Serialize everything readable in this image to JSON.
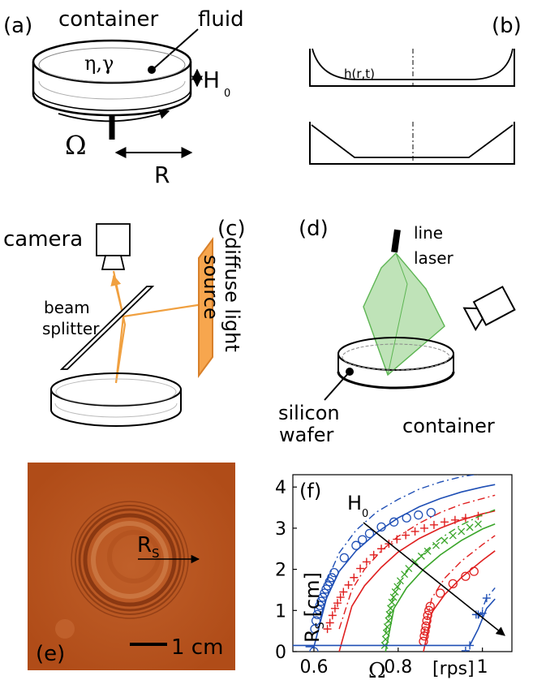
{
  "panel_a": {
    "tag": "(a)",
    "container": "container",
    "fluid": "fluid",
    "props": "η,γ",
    "depth": "H",
    "depth_sub": "0",
    "omega": "Ω",
    "radius": "R"
  },
  "panel_b": {
    "tag": "(b)",
    "profile": "h(r,t)"
  },
  "panel_c": {
    "tag": "(c)",
    "camera": "camera",
    "beam1": "beam",
    "beam2": "splitter",
    "diffuse": "diffuse light",
    "source": "source"
  },
  "panel_d": {
    "tag": "(d)",
    "line1": "line",
    "line2": "laser",
    "silicon": "silicon",
    "wafer": "wafer",
    "container": "container"
  },
  "panel_e": {
    "tag": "(e)",
    "rs": "R",
    "rs_sub": "S",
    "scale": "1 cm",
    "colors": {
      "bg": "#b5531f",
      "ring": "#7a2e0c"
    }
  },
  "panel_f": {
    "tag": "(f)",
    "h0": "H",
    "h0_sub": "0",
    "ylabel_main": "R",
    "ylabel_sub": "S",
    "ylabel_unit": "[cm]",
    "xlabel_omega": "Ω",
    "xlabel_unit": "[rps]"
  },
  "chart_data": {
    "type": "scatter",
    "xlim": [
      0.55,
      1.07
    ],
    "ylim": [
      0,
      4.3
    ],
    "xticks": [
      "0.6",
      "0.8",
      "1"
    ],
    "xtick_values": [
      0.6,
      0.8,
      1.0
    ],
    "yticks": [
      "0",
      "1",
      "2",
      "3",
      "4"
    ],
    "ytick_values": [
      0,
      1,
      2,
      3,
      4
    ],
    "grid": false,
    "series": [
      {
        "color": "#1f4fb5",
        "marker": "circle",
        "points": [
          [
            0.6,
            0.0
          ],
          [
            0.602,
            0.55
          ],
          [
            0.605,
            0.75
          ],
          [
            0.608,
            0.9
          ],
          [
            0.611,
            1.02
          ],
          [
            0.614,
            1.12
          ],
          [
            0.617,
            1.22
          ],
          [
            0.621,
            1.32
          ],
          [
            0.625,
            1.42
          ],
          [
            0.629,
            1.52
          ],
          [
            0.633,
            1.6
          ],
          [
            0.637,
            1.7
          ],
          [
            0.642,
            1.8
          ],
          [
            0.648,
            1.92
          ],
          [
            0.672,
            2.28
          ],
          [
            0.7,
            2.58
          ],
          [
            0.715,
            2.72
          ],
          [
            0.732,
            2.87
          ],
          [
            0.76,
            3.03
          ],
          [
            0.79,
            3.15
          ],
          [
            0.82,
            3.25
          ],
          [
            0.848,
            3.32
          ],
          [
            0.878,
            3.38
          ]
        ],
        "fit": [
          [
            0.58,
            0.12
          ],
          [
            0.6,
            0.12
          ],
          [
            0.63,
            1.3
          ],
          [
            0.66,
            1.95
          ],
          [
            0.7,
            2.45
          ],
          [
            0.75,
            2.9
          ],
          [
            0.8,
            3.25
          ],
          [
            0.85,
            3.52
          ],
          [
            0.9,
            3.72
          ],
          [
            0.95,
            3.88
          ],
          [
            1.0,
            4.0
          ],
          [
            1.03,
            4.06
          ]
        ],
        "fit_dash": [
          [
            0.63,
            1.7
          ],
          [
            0.66,
            2.4
          ],
          [
            0.7,
            2.95
          ],
          [
            0.75,
            3.4
          ],
          [
            0.8,
            3.7
          ],
          [
            0.85,
            3.95
          ],
          [
            0.9,
            4.12
          ],
          [
            0.95,
            4.25
          ],
          [
            1.0,
            4.33
          ],
          [
            1.03,
            4.37
          ]
        ]
      },
      {
        "color": "#e02020",
        "marker": "plus",
        "points": [
          [
            0.632,
            0.55
          ],
          [
            0.638,
            0.7
          ],
          [
            0.644,
            0.88
          ],
          [
            0.65,
            1.05
          ],
          [
            0.656,
            1.18
          ],
          [
            0.663,
            1.32
          ],
          [
            0.67,
            1.45
          ],
          [
            0.682,
            1.62
          ],
          [
            0.695,
            1.8
          ],
          [
            0.71,
            2.02
          ],
          [
            0.725,
            2.18
          ],
          [
            0.742,
            2.35
          ],
          [
            0.76,
            2.5
          ],
          [
            0.778,
            2.62
          ],
          [
            0.797,
            2.73
          ],
          [
            0.818,
            2.83
          ],
          [
            0.84,
            2.92
          ],
          [
            0.862,
            3.0
          ],
          [
            0.885,
            3.08
          ],
          [
            0.91,
            3.15
          ],
          [
            0.935,
            3.2
          ],
          [
            0.96,
            3.25
          ],
          [
            0.99,
            3.3
          ]
        ],
        "fit": [
          [
            0.66,
            0.0
          ],
          [
            0.69,
            1.1
          ],
          [
            0.72,
            1.6
          ],
          [
            0.76,
            2.05
          ],
          [
            0.8,
            2.42
          ],
          [
            0.85,
            2.75
          ],
          [
            0.9,
            3.0
          ],
          [
            0.95,
            3.2
          ],
          [
            1.0,
            3.35
          ],
          [
            1.03,
            3.42
          ]
        ],
        "fit_dash": [
          [
            0.66,
            0.55
          ],
          [
            0.69,
            1.5
          ],
          [
            0.72,
            2.0
          ],
          [
            0.76,
            2.45
          ],
          [
            0.8,
            2.8
          ],
          [
            0.85,
            3.12
          ],
          [
            0.9,
            3.38
          ],
          [
            0.95,
            3.58
          ],
          [
            1.0,
            3.72
          ],
          [
            1.03,
            3.8
          ]
        ]
      },
      {
        "color": "#3aa52a",
        "marker": "cross",
        "points": [
          [
            0.768,
            0.15
          ],
          [
            0.77,
            0.3
          ],
          [
            0.772,
            0.45
          ],
          [
            0.774,
            0.6
          ],
          [
            0.777,
            0.75
          ],
          [
            0.779,
            0.9
          ],
          [
            0.782,
            1.05
          ],
          [
            0.785,
            1.2
          ],
          [
            0.789,
            1.32
          ],
          [
            0.793,
            1.45
          ],
          [
            0.798,
            1.58
          ],
          [
            0.805,
            1.72
          ],
          [
            0.815,
            1.88
          ],
          [
            0.825,
            2.02
          ],
          [
            0.84,
            2.18
          ],
          [
            0.855,
            2.32
          ],
          [
            0.87,
            2.44
          ],
          [
            0.89,
            2.58
          ],
          [
            0.91,
            2.7
          ],
          [
            0.93,
            2.82
          ],
          [
            0.95,
            2.92
          ],
          [
            0.97,
            3.02
          ],
          [
            0.99,
            3.1
          ]
        ],
        "fit": [
          [
            0.77,
            0.0
          ],
          [
            0.79,
            1.05
          ],
          [
            0.82,
            1.55
          ],
          [
            0.86,
            2.0
          ],
          [
            0.9,
            2.35
          ],
          [
            0.95,
            2.7
          ],
          [
            1.0,
            2.98
          ],
          [
            1.03,
            3.1
          ]
        ],
        "fit_dash": [
          [
            0.77,
            0.45
          ],
          [
            0.79,
            1.4
          ],
          [
            0.82,
            1.95
          ],
          [
            0.86,
            2.4
          ],
          [
            0.9,
            2.75
          ],
          [
            0.95,
            3.08
          ],
          [
            1.0,
            3.33
          ],
          [
            1.03,
            3.45
          ]
        ]
      },
      {
        "color": "#e02020",
        "marker": "circle",
        "points": [
          [
            0.86,
            0.25
          ],
          [
            0.862,
            0.38
          ],
          [
            0.864,
            0.5
          ],
          [
            0.866,
            0.62
          ],
          [
            0.868,
            0.75
          ],
          [
            0.87,
            0.88
          ],
          [
            0.873,
            1.0
          ],
          [
            0.876,
            1.1
          ],
          [
            0.9,
            1.42
          ],
          [
            0.93,
            1.65
          ],
          [
            0.96,
            1.83
          ],
          [
            0.98,
            1.95
          ]
        ],
        "fit": [
          [
            0.86,
            0.0
          ],
          [
            0.88,
            0.95
          ],
          [
            0.91,
            1.38
          ],
          [
            0.95,
            1.8
          ],
          [
            1.0,
            2.22
          ],
          [
            1.03,
            2.45
          ]
        ],
        "fit_dash": [
          [
            0.86,
            0.4
          ],
          [
            0.88,
            1.3
          ],
          [
            0.91,
            1.78
          ],
          [
            0.95,
            2.2
          ],
          [
            1.0,
            2.6
          ],
          [
            1.03,
            2.82
          ]
        ]
      },
      {
        "color": "#1f4fb5",
        "marker": "plus",
        "points": [
          [
            0.96,
            0.02
          ],
          [
            0.97,
            0.15
          ],
          [
            0.985,
            0.9
          ],
          [
            0.99,
            0.9
          ],
          [
            1.0,
            0.93
          ],
          [
            1.01,
            1.3
          ]
        ],
        "fit": [
          [
            0.55,
            0.15
          ],
          [
            0.97,
            0.15
          ],
          [
            0.99,
            0.55
          ],
          [
            1.01,
            1.05
          ],
          [
            1.03,
            1.28
          ]
        ],
        "fit_dash": [
          [
            0.99,
            0.8
          ],
          [
            1.01,
            1.3
          ],
          [
            1.03,
            1.55
          ]
        ]
      }
    ]
  }
}
